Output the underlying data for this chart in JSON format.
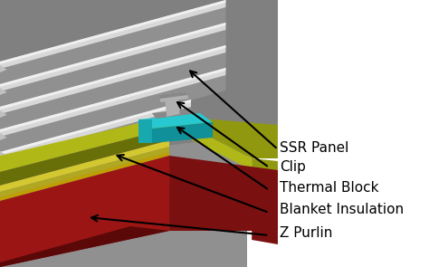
{
  "bg_color": "#ffffff",
  "gray_bg": "#909090",
  "gray_panel_base": "#888888",
  "gray_panel_light": "#c8c8c8",
  "gray_panel_white": "#e8e8e8",
  "gray_panel_dark": "#707070",
  "olive_bright": "#b0b818",
  "olive_mid": "#909810",
  "olive_dark": "#686e08",
  "yellow_insul": "#d4c830",
  "yellow_insul_side": "#b0a820",
  "red_top": "#9b1515",
  "red_mid": "#7a1010",
  "red_dark": "#5a0808",
  "cyan_bright": "#28c8d0",
  "cyan_mid": "#18a8b0",
  "cyan_dark": "#109098",
  "clip_light": "#b0b0b0",
  "clip_mid": "#888888",
  "clip_dark": "#606060",
  "white_bg": "#ffffff",
  "labels": [
    "SSR Panel",
    "Clip",
    "Thermal Block",
    "Blanket Insulation",
    "Z Purlin"
  ],
  "label_fontsize": 11
}
